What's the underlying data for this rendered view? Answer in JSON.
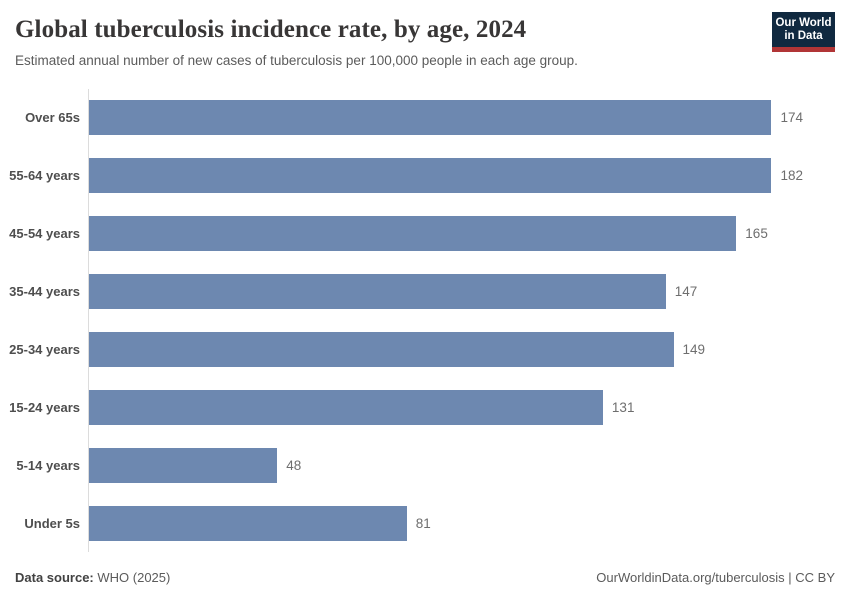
{
  "header": {
    "title": "Global tuberculosis incidence rate, by age, 2024",
    "subtitle": "Estimated annual number of new cases of tuberculosis per 100,000 people in each age group.",
    "logo_line1": "Our World",
    "logo_line2": "in Data"
  },
  "chart_data": {
    "type": "bar",
    "orientation": "horizontal",
    "title": "Global tuberculosis incidence rate, by age, 2024",
    "categories": [
      "Over 65s",
      "55-64 years",
      "45-54 years",
      "35-44 years",
      "25-34 years",
      "15-24 years",
      "5-14 years",
      "Under 5s"
    ],
    "values": [
      174,
      182,
      165,
      147,
      149,
      131,
      48,
      81
    ],
    "xlabel": "",
    "ylabel": "",
    "xlim": [
      0,
      182
    ],
    "grid": false,
    "legend": "none",
    "value_labels": true,
    "bar_color": "#6d88b0"
  },
  "footer": {
    "source_label": "Data source:",
    "source_value": "WHO (2025)",
    "link": "OurWorldinData.org/tuberculosis",
    "separator": "|",
    "license": "CC BY"
  },
  "colors": {
    "bar": "#6d88b0",
    "axis_line": "#dcdcdc",
    "title": "#383636",
    "subtitle": "#5b5b5b",
    "value_label": "#6e6e6e",
    "logo_navy": "#102940",
    "logo_red": "#b13536"
  }
}
